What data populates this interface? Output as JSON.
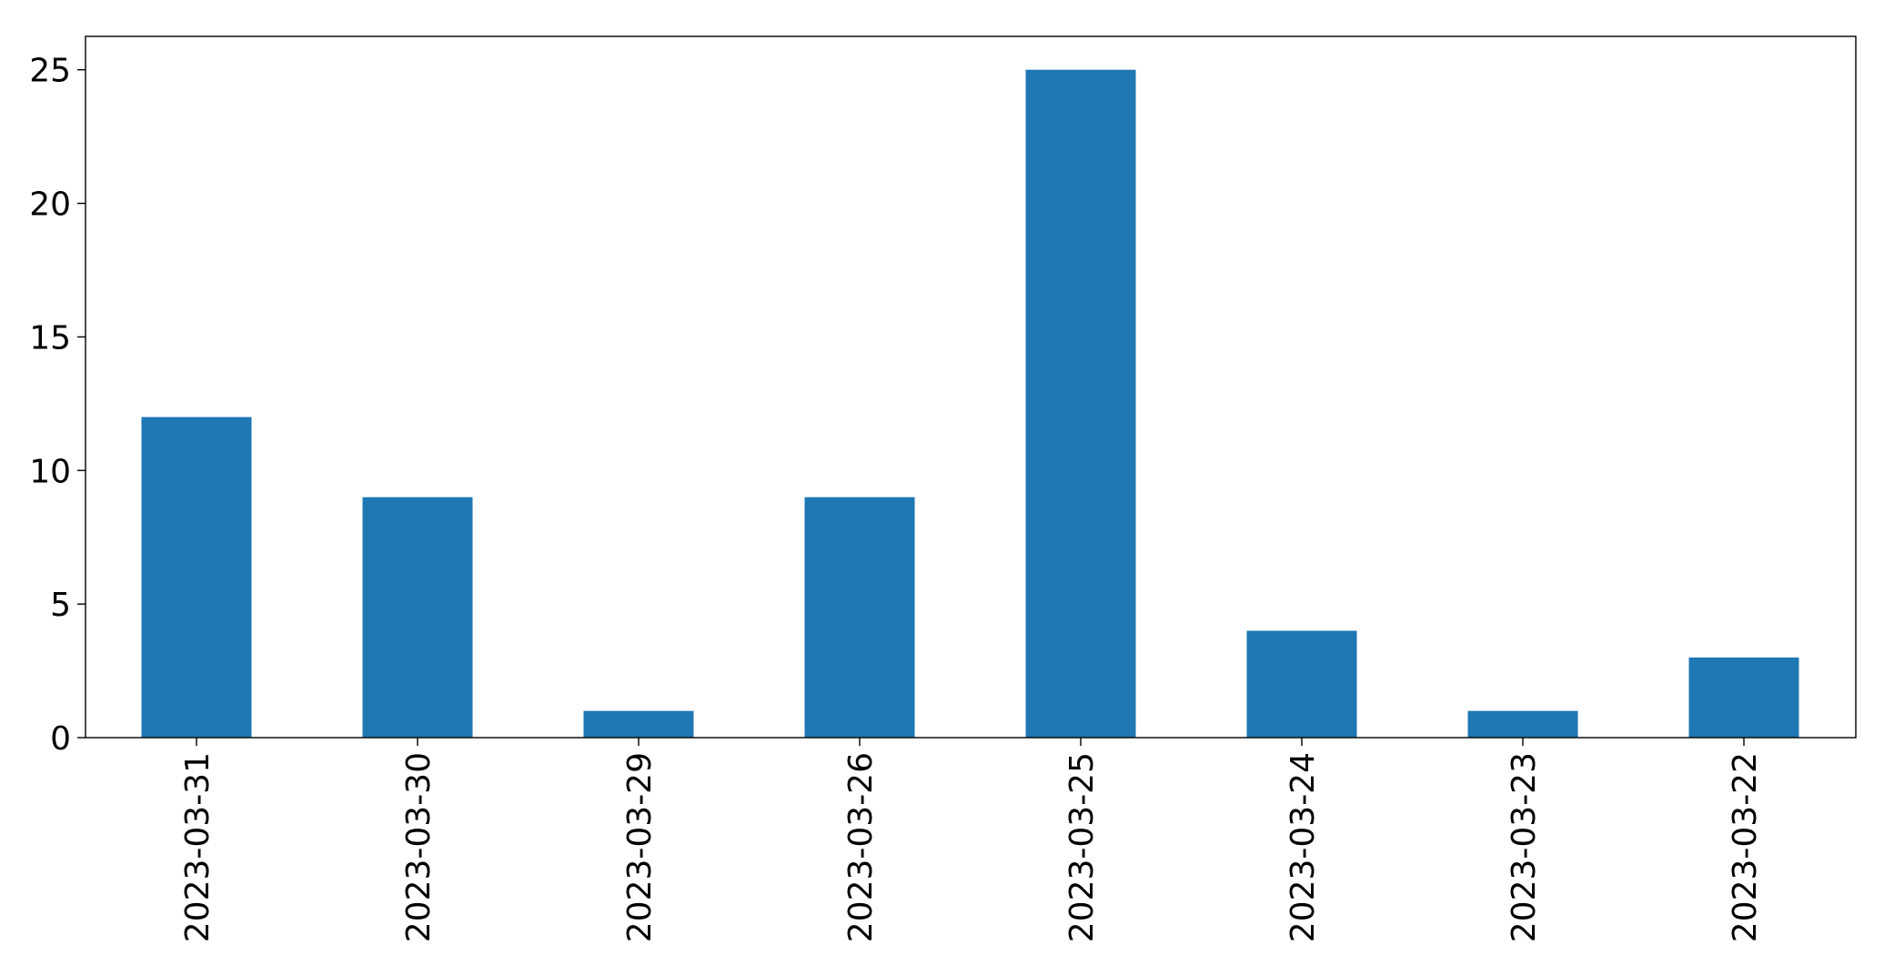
{
  "chart_data": {
    "type": "bar",
    "categories": [
      "2023-03-31",
      "2023-03-30",
      "2023-03-29",
      "2023-03-26",
      "2023-03-25",
      "2023-03-24",
      "2023-03-23",
      "2023-03-22"
    ],
    "values": [
      12,
      9,
      1,
      9,
      25,
      4,
      1,
      3
    ],
    "title": "",
    "xlabel": "",
    "ylabel": "",
    "ylim": [
      0,
      26.25
    ],
    "yticks": [
      0,
      5,
      10,
      15,
      20,
      25
    ],
    "x_tick_rotation": "vertical",
    "grid": false,
    "legend": "none",
    "bar_color": "#1f77b4"
  }
}
